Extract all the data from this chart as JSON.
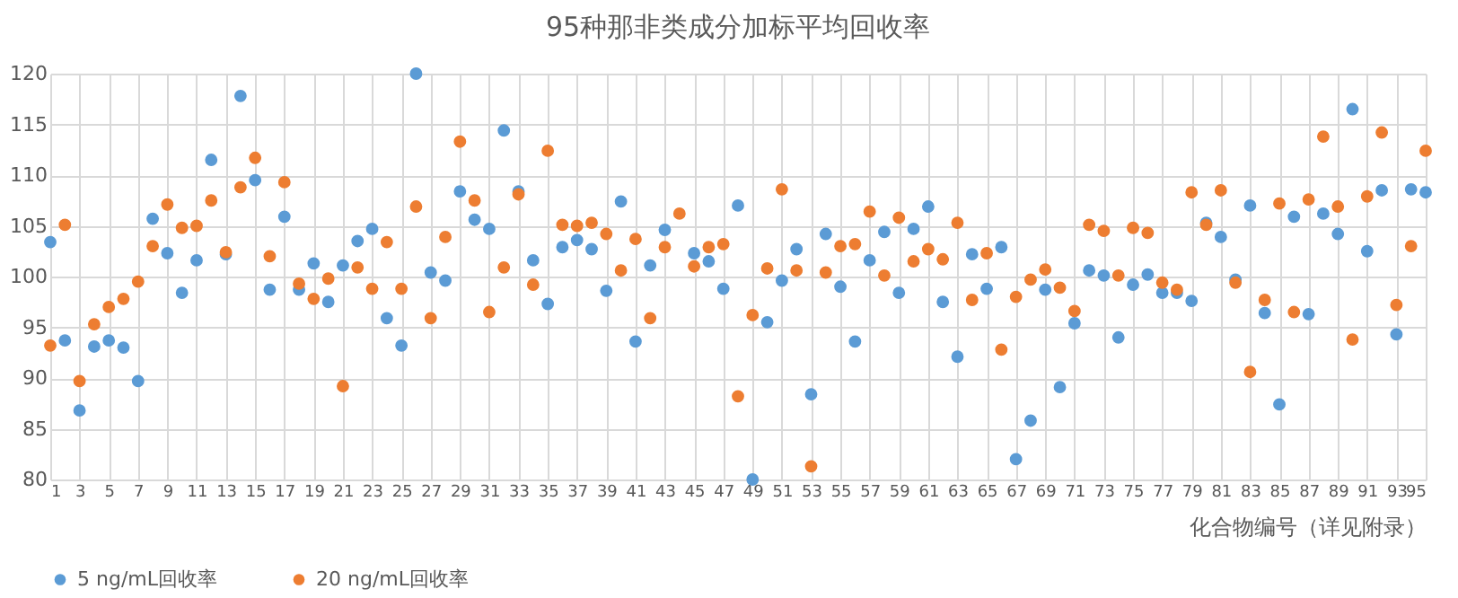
{
  "chart_data": {
    "type": "scatter",
    "title": "95种那非类成分加标平均回收率",
    "xlabel": "化合物编号（详见附录）",
    "x": [
      1,
      2,
      3,
      4,
      5,
      6,
      7,
      8,
      9,
      10,
      11,
      12,
      13,
      14,
      15,
      16,
      17,
      18,
      19,
      20,
      21,
      22,
      23,
      24,
      25,
      26,
      27,
      28,
      29,
      30,
      31,
      32,
      33,
      34,
      35,
      36,
      37,
      38,
      39,
      40,
      41,
      42,
      43,
      44,
      45,
      46,
      47,
      48,
      49,
      50,
      51,
      52,
      53,
      54,
      55,
      56,
      57,
      58,
      59,
      60,
      61,
      62,
      63,
      64,
      65,
      66,
      67,
      68,
      69,
      70,
      71,
      72,
      73,
      74,
      75,
      76,
      77,
      78,
      79,
      80,
      81,
      82,
      83,
      84,
      85,
      86,
      87,
      88,
      89,
      90,
      91,
      92,
      93,
      94,
      95
    ],
    "series": [
      {
        "name": "5 ng/mL回收率",
        "color": "#5b9bd5",
        "values": [
          103.4,
          93.7,
          86.8,
          93.1,
          93.7,
          93.0,
          89.7,
          105.7,
          102.3,
          98.4,
          101.6,
          111.5,
          102.2,
          117.8,
          109.5,
          98.7,
          105.9,
          98.7,
          101.3,
          97.5,
          101.1,
          103.5,
          104.7,
          95.9,
          93.2,
          120.0,
          100.4,
          99.6,
          108.4,
          105.6,
          104.7,
          114.4,
          108.4,
          101.6,
          97.3,
          102.9,
          103.6,
          102.7,
          98.6,
          107.4,
          93.6,
          101.1,
          104.6,
          null,
          102.3,
          101.5,
          98.8,
          107.0,
          80.0,
          95.5,
          99.6,
          102.7,
          88.4,
          104.2,
          99.0,
          93.6,
          101.6,
          104.4,
          98.4,
          104.7,
          106.9,
          97.5,
          92.1,
          102.2,
          98.8,
          102.9,
          82.0,
          85.8,
          98.7,
          89.1,
          95.4,
          100.6,
          100.1,
          94.0,
          99.2,
          100.2,
          98.4,
          98.4,
          97.6,
          105.3,
          103.9,
          99.7,
          107.0,
          96.4,
          87.4,
          105.9,
          96.3,
          106.2,
          104.2,
          116.5,
          102.5,
          108.5,
          94.3,
          108.6,
          108.3
        ]
      },
      {
        "name": "20 ng/mL回收率",
        "color": "#ed7d31",
        "values": [
          93.2,
          105.1,
          89.7,
          95.3,
          97.0,
          97.8,
          99.5,
          103.0,
          107.1,
          104.8,
          105.0,
          107.5,
          102.4,
          108.8,
          111.7,
          102.0,
          109.3,
          99.3,
          97.8,
          99.8,
          89.2,
          100.9,
          98.8,
          103.4,
          98.8,
          106.9,
          95.9,
          103.9,
          113.3,
          107.5,
          96.5,
          100.9,
          108.1,
          99.2,
          112.4,
          105.1,
          105.0,
          105.3,
          104.2,
          100.6,
          103.7,
          95.9,
          102.9,
          106.2,
          101.0,
          102.9,
          103.2,
          88.2,
          96.2,
          100.8,
          108.6,
          100.6,
          81.3,
          100.4,
          103.0,
          103.2,
          106.4,
          100.1,
          105.8,
          101.5,
          102.7,
          101.7,
          105.3,
          97.7,
          102.3,
          92.8,
          98.0,
          99.7,
          100.7,
          98.9,
          96.6,
          105.1,
          104.5,
          100.1,
          104.8,
          104.3,
          99.4,
          98.7,
          108.3,
          105.1,
          108.5,
          99.4,
          90.6,
          97.7,
          107.2,
          96.5,
          107.6,
          113.8,
          106.9,
          93.8,
          107.9,
          114.2,
          97.2,
          103.0,
          112.4
        ]
      }
    ],
    "xlim": [
      1,
      95
    ],
    "xticks": [
      1,
      3,
      5,
      7,
      9,
      11,
      13,
      15,
      17,
      19,
      21,
      23,
      25,
      27,
      29,
      31,
      33,
      35,
      37,
      39,
      41,
      43,
      45,
      47,
      49,
      51,
      53,
      55,
      57,
      59,
      61,
      63,
      65,
      67,
      69,
      71,
      73,
      75,
      77,
      79,
      81,
      83,
      85,
      87,
      89,
      91,
      93,
      95
    ],
    "ylim": [
      80,
      120
    ],
    "yticks": [
      80,
      85,
      90,
      95,
      100,
      105,
      110,
      115,
      120
    ],
    "grid": true,
    "legend": "bottom",
    "marker": "circle"
  }
}
